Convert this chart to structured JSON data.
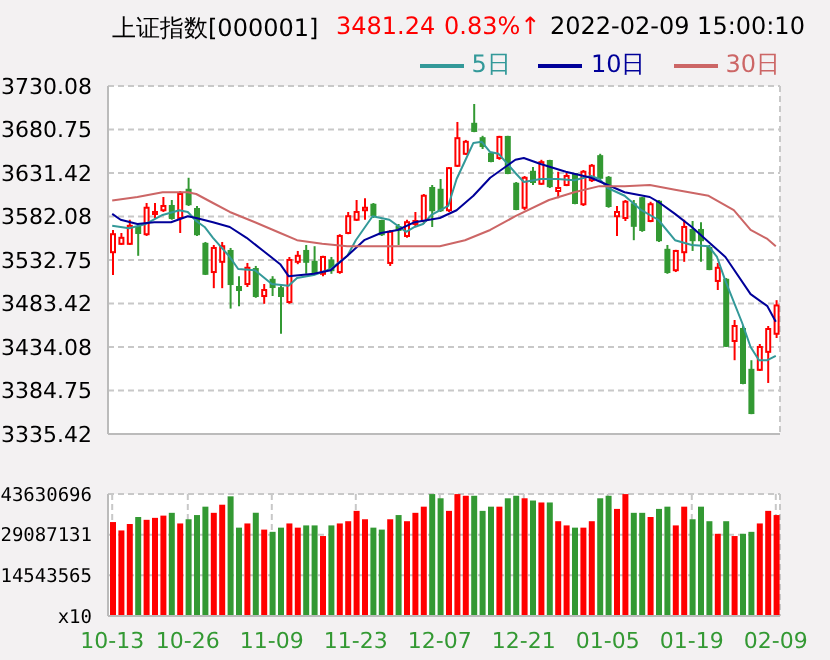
{
  "chart_data": [
    {
      "type": "candlestick",
      "title": "上证指数[000001]",
      "annotations": [
        "3481.24",
        "0.83%↑",
        "2022-02-09 15:00:10"
      ],
      "categories": [
        null,
        null,
        null,
        null,
        null,
        null,
        null,
        null,
        null,
        null,
        null,
        null,
        null,
        null,
        null,
        null,
        null,
        null,
        null,
        null,
        null,
        null,
        null,
        null,
        null,
        null,
        null,
        null,
        null,
        null,
        null,
        null,
        null,
        null,
        null,
        null,
        null,
        null,
        null,
        null,
        null,
        null,
        null,
        null,
        null,
        null,
        null,
        null,
        null,
        null,
        null,
        null,
        null,
        null,
        null,
        null,
        null,
        null,
        null,
        null,
        null,
        null,
        null,
        null,
        null,
        null,
        null,
        null,
        null,
        null,
        null,
        null,
        null,
        null,
        null,
        null,
        null,
        null,
        null,
        null
      ],
      "ohlc": [
        [
          3541.6,
          3566.8,
          3515.7,
          3562.0
        ],
        [
          3551.1,
          3563.4,
          3549.8,
          3557.9
        ],
        [
          3551.1,
          3578.4,
          3549.8,
          3571.5
        ],
        [
          3570.2,
          3573.6,
          3537.5,
          3563.4
        ],
        [
          3562.0,
          3597.4,
          3560.0,
          3592.0
        ],
        [
          3585.1,
          3597.4,
          3580.4,
          3587.2
        ],
        [
          3589.2,
          3604.2,
          3587.2,
          3594.0
        ],
        [
          3594.0,
          3600.8,
          3578.4,
          3580.4
        ],
        [
          3580.4,
          3611.0,
          3563.4,
          3607.6
        ],
        [
          3612.4,
          3626.0,
          3594.0,
          3596.0
        ],
        [
          3590.6,
          3594.0,
          3560.0,
          3562.0
        ],
        [
          3551.1,
          3553.2,
          3515.7,
          3517.1
        ],
        [
          3519.1,
          3549.8,
          3500.8,
          3546.4
        ],
        [
          3530.7,
          3553.2,
          3500.8,
          3548.4
        ],
        [
          3543.0,
          3546.4,
          3477.6,
          3505.5
        ],
        [
          3502.1,
          3514.4,
          3480.4,
          3498.7
        ],
        [
          3505.5,
          3529.4,
          3502.1,
          3523.9
        ],
        [
          3522.5,
          3526.0,
          3489.9,
          3491.9
        ],
        [
          3491.9,
          3505.5,
          3483.1,
          3498.7
        ],
        [
          3510.3,
          3514.4,
          3491.9,
          3502.1
        ],
        [
          3500.8,
          3505.5,
          3449.1,
          3491.9
        ],
        [
          3485.1,
          3536.2,
          3483.1,
          3532.8
        ],
        [
          3530.7,
          3543.0,
          3528.0,
          3537.5
        ],
        [
          3543.0,
          3549.8,
          3517.1,
          3530.7
        ],
        [
          3530.7,
          3548.4,
          3517.1,
          3519.1
        ],
        [
          3517.1,
          3537.5,
          3514.4,
          3536.2
        ],
        [
          3532.1,
          3536.2,
          3517.1,
          3521.2
        ],
        [
          3519.1,
          3562.0,
          3517.1,
          3560.0
        ],
        [
          3563.4,
          3587.2,
          3562.0,
          3582.4
        ],
        [
          3578.4,
          3600.8,
          3577.0,
          3587.2
        ],
        [
          3589.2,
          3602.8,
          3578.4,
          3592.0
        ],
        [
          3595.4,
          3597.4,
          3580.4,
          3583.8
        ],
        [
          3577.0,
          3578.4,
          3560.0,
          3562.0
        ],
        [
          3529.4,
          3566.8,
          3526.0,
          3564.7
        ],
        [
          3570.2,
          3573.6,
          3549.8,
          3566.8
        ],
        [
          3560.0,
          3578.4,
          3557.9,
          3575.6
        ],
        [
          3573.6,
          3587.2,
          3570.2,
          3577.0
        ],
        [
          3577.0,
          3607.6,
          3573.6,
          3605.6
        ],
        [
          3614.4,
          3617.8,
          3570.2,
          3589.2
        ],
        [
          3612.4,
          3624.6,
          3587.2,
          3589.2
        ],
        [
          3589.2,
          3638.2,
          3587.2,
          3636.9
        ],
        [
          3639.6,
          3689.3,
          3638.2,
          3670.9
        ],
        [
          3653.2,
          3668.9,
          3651.8,
          3666.8
        ],
        [
          3687.2,
          3709.7,
          3677.7,
          3679.1
        ],
        [
          3670.9,
          3673.6,
          3658.6,
          3662.0
        ],
        [
          3653.2,
          3655.2,
          3643.7,
          3645.0
        ],
        [
          3648.4,
          3673.6,
          3646.4,
          3672.3
        ],
        [
          3672.3,
          3673.6,
          3630.1,
          3631.4
        ],
        [
          3619.2,
          3621.2,
          3589.2,
          3590.6
        ],
        [
          3592.0,
          3628.0,
          3589.2,
          3626.0
        ],
        [
          3632.8,
          3638.2,
          3617.8,
          3621.2
        ],
        [
          3619.2,
          3646.4,
          3617.8,
          3643.7
        ],
        [
          3645.0,
          3646.4,
          3614.4,
          3616.5
        ],
        [
          3611.0,
          3632.8,
          3602.8,
          3614.4
        ],
        [
          3617.8,
          3631.4,
          3616.5,
          3628.0
        ],
        [
          3630.1,
          3631.4,
          3596.0,
          3597.4
        ],
        [
          3596.0,
          3634.8,
          3594.0,
          3632.8
        ],
        [
          3623.3,
          3641.6,
          3621.2,
          3639.6
        ],
        [
          3650.5,
          3653.2,
          3624.6,
          3626.0
        ],
        [
          3626.0,
          3628.0,
          3592.0,
          3594.0
        ],
        [
          3582.4,
          3594.0,
          3560.0,
          3587.2
        ],
        [
          3580.4,
          3600.8,
          3577.0,
          3598.8
        ],
        [
          3596.0,
          3600.8,
          3555.2,
          3571.5
        ],
        [
          3602.8,
          3604.2,
          3564.7,
          3566.8
        ],
        [
          3577.0,
          3598.8,
          3575.6,
          3596.0
        ],
        [
          3598.8,
          3600.8,
          3553.2,
          3555.2
        ],
        [
          3544.3,
          3549.8,
          3517.1,
          3519.1
        ],
        [
          3521.2,
          3544.3,
          3519.1,
          3543.0
        ],
        [
          3541.6,
          3578.4,
          3530.7,
          3570.2
        ],
        [
          3566.8,
          3577.0,
          3543.0,
          3555.2
        ],
        [
          3566.8,
          3575.6,
          3530.7,
          3555.2
        ],
        [
          3546.4,
          3549.8,
          3521.2,
          3522.5
        ],
        [
          3509.0,
          3529.4,
          3498.7,
          3523.9
        ],
        [
          3510.3,
          3512.3,
          3434.1,
          3435.4
        ],
        [
          3440.9,
          3464.7,
          3419.1,
          3457.9
        ],
        [
          3454.5,
          3457.9,
          3391.9,
          3393.3
        ],
        [
          3408.2,
          3419.1,
          3357.9,
          3359.2
        ],
        [
          3408.2,
          3437.5,
          3406.9,
          3434.1
        ],
        [
          3428.6,
          3457.9,
          3393.3,
          3454.5
        ],
        [
          3449.1,
          3487.2,
          3444.3,
          3481.2
        ]
      ],
      "colors": [
        "#ff0000",
        "#ff0000",
        "#ff0000",
        "#339933",
        "#ff0000",
        "#ff0000",
        "#ff0000",
        "#339933",
        "#ff0000",
        "#339933",
        "#339933",
        "#339933",
        "#ff0000",
        "#ff0000",
        "#339933",
        "#339933",
        "#ff0000",
        "#339933",
        "#ff0000",
        "#339933",
        "#339933",
        "#ff0000",
        "#ff0000",
        "#339933",
        "#339933",
        "#ff0000",
        "#339933",
        "#ff0000",
        "#ff0000",
        "#ff0000",
        "#ff0000",
        "#339933",
        "#339933",
        "#ff0000",
        "#339933",
        "#ff0000",
        "#ff0000",
        "#ff0000",
        "#339933",
        "#339933",
        "#ff0000",
        "#ff0000",
        "#ff0000",
        "#339933",
        "#339933",
        "#339933",
        "#ff0000",
        "#339933",
        "#339933",
        "#ff0000",
        "#339933",
        "#ff0000",
        "#339933",
        "#ff0000",
        "#ff0000",
        "#339933",
        "#ff0000",
        "#ff0000",
        "#339933",
        "#339933",
        "#ff0000",
        "#ff0000",
        "#339933",
        "#339933",
        "#ff0000",
        "#339933",
        "#339933",
        "#ff0000",
        "#ff0000",
        "#339933",
        "#339933",
        "#339933",
        "#ff0000",
        "#339933",
        "#ff0000",
        "#339933",
        "#339933",
        "#ff0000",
        "#ff0000",
        "#ff0000"
      ],
      "series": [
        {
          "type": "line",
          "name": "5日",
          "color": "#339999",
          "values": [
            3571.5,
            null,
            3568.8,
            null,
            3573.6,
            null,
            3583.8,
            null,
            3589.2,
            3587.2,
            3577.0,
            3570.2,
            3557.9,
            null,
            3536.2,
            3522.5,
            null,
            3521.2,
            null,
            3505.5,
            null,
            3503.5,
            3512.3,
            null,
            3515.7,
            null,
            3522.5,
            null,
            3537.5,
            3555.2,
            null,
            3582.4,
            null,
            3578.4,
            null,
            3564.7,
            3570.2,
            3573.6,
            3583.8,
            null,
            3594.0,
            3624.6,
            3645.0,
            3665.5,
            3666.8,
            3655.2,
            3653.2,
            null,
            3631.4,
            3621.2,
            null,
            3624.6,
            null,
            3624.6,
            null,
            3623.3,
            null,
            3628.0,
            3624.6,
            3614.4,
            null,
            3605.6,
            null,
            3589.2,
            null,
            3578.4,
            null,
            3555.2,
            null,
            3549.8,
            null,
            3548.4,
            3536.2,
            3509.0,
            null,
            3461.3,
            3434.1,
            3419.1,
            3419.1,
            3423.9
          ]
        },
        {
          "type": "line",
          "name": "10日",
          "color": "#000099",
          "values": [
            3585.1,
            3578.4,
            null,
            3573.6,
            null,
            3575.6,
            null,
            3575.6,
            null,
            3582.4,
            3580.4,
            null,
            3575.6,
            null,
            3570.2,
            null,
            3557.9,
            null,
            3543.0,
            null,
            3528.0,
            3514.4,
            null,
            null,
            3517.1,
            null,
            3521.2,
            null,
            3537.5,
            null,
            3555.2,
            null,
            3563.4,
            null,
            3566.8,
            null,
            3575.6,
            null,
            null,
            3580.4,
            null,
            3589.2,
            null,
            3605.6,
            null,
            3626.0,
            null,
            null,
            3646.4,
            3648.4,
            null,
            3641.6,
            null,
            null,
            3632.8,
            null,
            null,
            3626.0,
            null,
            null,
            null,
            3609.6,
            null,
            null,
            3604.2,
            3598.8,
            null,
            3585.1,
            null,
            3570.2,
            null,
            3553.2,
            null,
            3536.2,
            null,
            null,
            3494.0,
            null,
            3480.4,
            3462.7
          ]
        },
        {
          "type": "line",
          "name": "30日",
          "color": "#cc6666",
          "values": [
            3600.1,
            null,
            null,
            3604.2,
            null,
            null,
            3609.6,
            null,
            null,
            3609.6,
            3607.6,
            null,
            3597.4,
            null,
            3587.2,
            null,
            null,
            3575.6,
            null,
            null,
            3563.4,
            null,
            3555.2,
            null,
            null,
            3551.1,
            null,
            null,
            3548.4,
            null,
            null,
            null,
            null,
            null,
            3548.4,
            null,
            null,
            null,
            null,
            3548.4,
            null,
            null,
            3555.2,
            null,
            null,
            3566.8,
            null,
            null,
            3582.4,
            null,
            null,
            null,
            3600.8,
            null,
            null,
            3609.6,
            null,
            null,
            3616.5,
            null,
            null,
            3616.5,
            null,
            null,
            3617.8,
            null,
            null,
            3612.4,
            null,
            null,
            null,
            3605.6,
            null,
            null,
            3589.2,
            null,
            3566.8,
            null,
            3556.6,
            3548.4
          ]
        }
      ],
      "ylim": [
        3335.42,
        3730.08
      ],
      "yticks": [
        3335.42,
        3384.75,
        3434.08,
        3483.42,
        3532.75,
        3582.08,
        3631.42,
        3680.75,
        3730.08
      ],
      "grid": true,
      "legend": "top right",
      "tick_labels": "y"
    },
    {
      "type": "bar",
      "categories": [
        "10-13",
        null,
        null,
        null,
        null,
        null,
        null,
        null,
        null,
        "10-26",
        null,
        null,
        null,
        null,
        null,
        null,
        null,
        null,
        null,
        "11-09",
        null,
        null,
        null,
        null,
        null,
        null,
        null,
        null,
        null,
        "11-23",
        null,
        null,
        null,
        null,
        null,
        null,
        null,
        null,
        null,
        "12-07",
        null,
        null,
        null,
        null,
        null,
        null,
        null,
        null,
        null,
        "12-21",
        null,
        null,
        null,
        null,
        null,
        null,
        null,
        null,
        null,
        "01-05",
        null,
        null,
        null,
        null,
        null,
        null,
        null,
        null,
        null,
        "01-19",
        null,
        null,
        null,
        null,
        null,
        null,
        null,
        null,
        null,
        "02-09"
      ],
      "values": [
        33600000,
        30600000,
        32900000,
        35400000,
        34400000,
        35100000,
        35900000,
        36900000,
        33100000,
        34600000,
        36100000,
        39100000,
        36900000,
        39800000,
        42800000,
        31600000,
        33100000,
        36900000,
        30900000,
        30100000,
        31600000,
        33100000,
        31600000,
        32400000,
        32400000,
        28600000,
        32400000,
        33100000,
        33900000,
        37600000,
        34600000,
        31600000,
        30900000,
        34600000,
        36100000,
        33900000,
        36900000,
        39100000,
        43600000,
        42100000,
        37600000,
        43600000,
        43000000,
        43000000,
        37600000,
        39100000,
        39100000,
        42100000,
        43000000,
        42100000,
        41300000,
        40600000,
        40600000,
        33900000,
        32400000,
        31600000,
        31600000,
        33900000,
        42100000,
        43000000,
        38300000,
        43600000,
        36900000,
        36900000,
        35400000,
        38300000,
        39100000,
        32400000,
        39100000,
        34600000,
        39100000,
        33900000,
        29400000,
        33900000,
        28600000,
        29400000,
        30100000,
        33100000,
        37600000,
        36100000
      ],
      "colors": [
        "#ff0000",
        "#ff0000",
        "#ff0000",
        "#339933",
        "#ff0000",
        "#ff0000",
        "#ff0000",
        "#339933",
        "#ff0000",
        "#339933",
        "#339933",
        "#339933",
        "#ff0000",
        "#ff0000",
        "#339933",
        "#339933",
        "#ff0000",
        "#339933",
        "#ff0000",
        "#339933",
        "#339933",
        "#ff0000",
        "#ff0000",
        "#339933",
        "#339933",
        "#ff0000",
        "#339933",
        "#ff0000",
        "#ff0000",
        "#ff0000",
        "#ff0000",
        "#339933",
        "#339933",
        "#ff0000",
        "#339933",
        "#ff0000",
        "#ff0000",
        "#ff0000",
        "#339933",
        "#339933",
        "#ff0000",
        "#ff0000",
        "#ff0000",
        "#339933",
        "#339933",
        "#339933",
        "#ff0000",
        "#339933",
        "#339933",
        "#ff0000",
        "#339933",
        "#ff0000",
        "#339933",
        "#ff0000",
        "#ff0000",
        "#339933",
        "#ff0000",
        "#ff0000",
        "#339933",
        "#339933",
        "#ff0000",
        "#ff0000",
        "#339933",
        "#339933",
        "#ff0000",
        "#339933",
        "#339933",
        "#ff0000",
        "#ff0000",
        "#339933",
        "#339933",
        "#339933",
        "#ff0000",
        "#339933",
        "#ff0000",
        "#339933",
        "#339933",
        "#ff0000",
        "#ff0000",
        "#ff0000"
      ],
      "ylim": [
        0,
        43630696
      ],
      "yticks": [
        {
          "value": 0,
          "label": "x10"
        },
        14543565,
        29087131,
        43630696
      ],
      "grid": true
    }
  ]
}
